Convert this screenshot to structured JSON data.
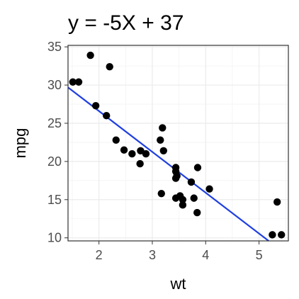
{
  "chart_data": {
    "type": "scatter",
    "title": "y = -5X + 37",
    "xlabel": "wt",
    "ylabel": "mpg",
    "xlim": [
      1.42,
      5.55
    ],
    "ylim": [
      9.6,
      35.2
    ],
    "xticks": [
      2,
      3,
      4,
      5
    ],
    "yticks": [
      10,
      15,
      20,
      25,
      30,
      35
    ],
    "grid": true,
    "colors": {
      "points": "#000000",
      "line": "#1f3fe0",
      "panel_border": "#333333"
    },
    "points": [
      {
        "x": 1.51,
        "y": 30.4
      },
      {
        "x": 1.62,
        "y": 30.4
      },
      {
        "x": 1.84,
        "y": 33.9
      },
      {
        "x": 1.94,
        "y": 27.3
      },
      {
        "x": 2.14,
        "y": 26.0
      },
      {
        "x": 2.2,
        "y": 32.4
      },
      {
        "x": 2.32,
        "y": 22.8
      },
      {
        "x": 2.47,
        "y": 21.5
      },
      {
        "x": 2.62,
        "y": 21.0
      },
      {
        "x": 2.77,
        "y": 19.7
      },
      {
        "x": 2.78,
        "y": 21.4
      },
      {
        "x": 2.88,
        "y": 21.0
      },
      {
        "x": 3.15,
        "y": 22.8
      },
      {
        "x": 3.17,
        "y": 15.8
      },
      {
        "x": 3.19,
        "y": 24.4
      },
      {
        "x": 3.21,
        "y": 21.4
      },
      {
        "x": 3.44,
        "y": 18.7
      },
      {
        "x": 3.44,
        "y": 19.2
      },
      {
        "x": 3.44,
        "y": 17.8
      },
      {
        "x": 3.44,
        "y": 15.2
      },
      {
        "x": 3.46,
        "y": 18.1
      },
      {
        "x": 3.52,
        "y": 15.5
      },
      {
        "x": 3.57,
        "y": 15.0
      },
      {
        "x": 3.57,
        "y": 14.3
      },
      {
        "x": 3.73,
        "y": 17.3
      },
      {
        "x": 3.78,
        "y": 15.2
      },
      {
        "x": 3.84,
        "y": 13.3
      },
      {
        "x": 3.85,
        "y": 19.2
      },
      {
        "x": 4.07,
        "y": 16.4
      },
      {
        "x": 5.25,
        "y": 10.4
      },
      {
        "x": 5.34,
        "y": 14.7
      },
      {
        "x": 5.42,
        "y": 10.4
      }
    ],
    "fit_line": {
      "slope": -5.344,
      "intercept": 37.285
    }
  }
}
